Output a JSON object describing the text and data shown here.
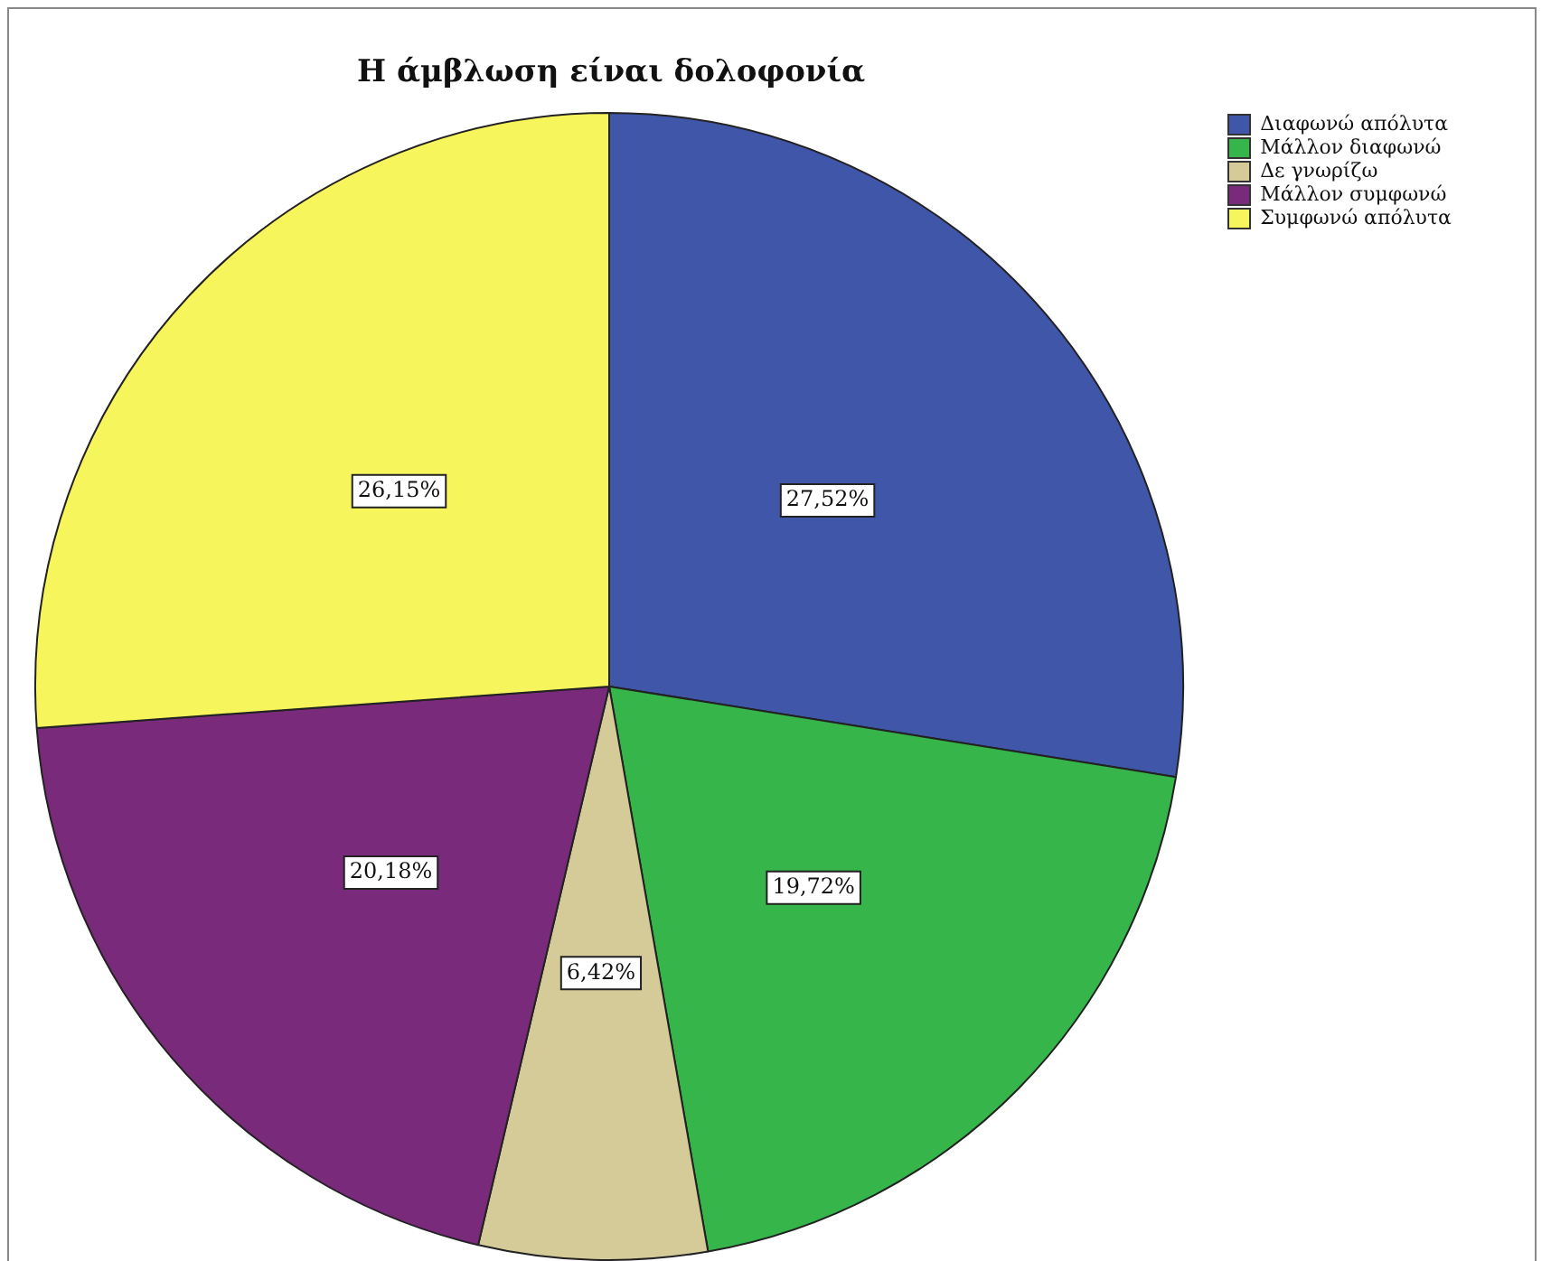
{
  "chart_data": {
    "type": "pie",
    "title": "Η άμβλωση είναι δολοφονία",
    "categories": [
      "Διαφωνώ απόλυτα",
      "Μάλλον διαφωνώ",
      "Δε γνωρίζω",
      "Μάλλον συμφωνώ",
      "Συμφωνώ απόλυτα"
    ],
    "values": [
      27.52,
      19.72,
      6.42,
      20.18,
      26.15
    ],
    "colors": [
      "#3f56a9",
      "#35b54a",
      "#d4cb99",
      "#7a2a7a",
      "#f7f55c"
    ],
    "value_labels": [
      "27,52%",
      "19,72%",
      "6,42%",
      "20,18%",
      "26,15%"
    ],
    "legend": "top right"
  }
}
